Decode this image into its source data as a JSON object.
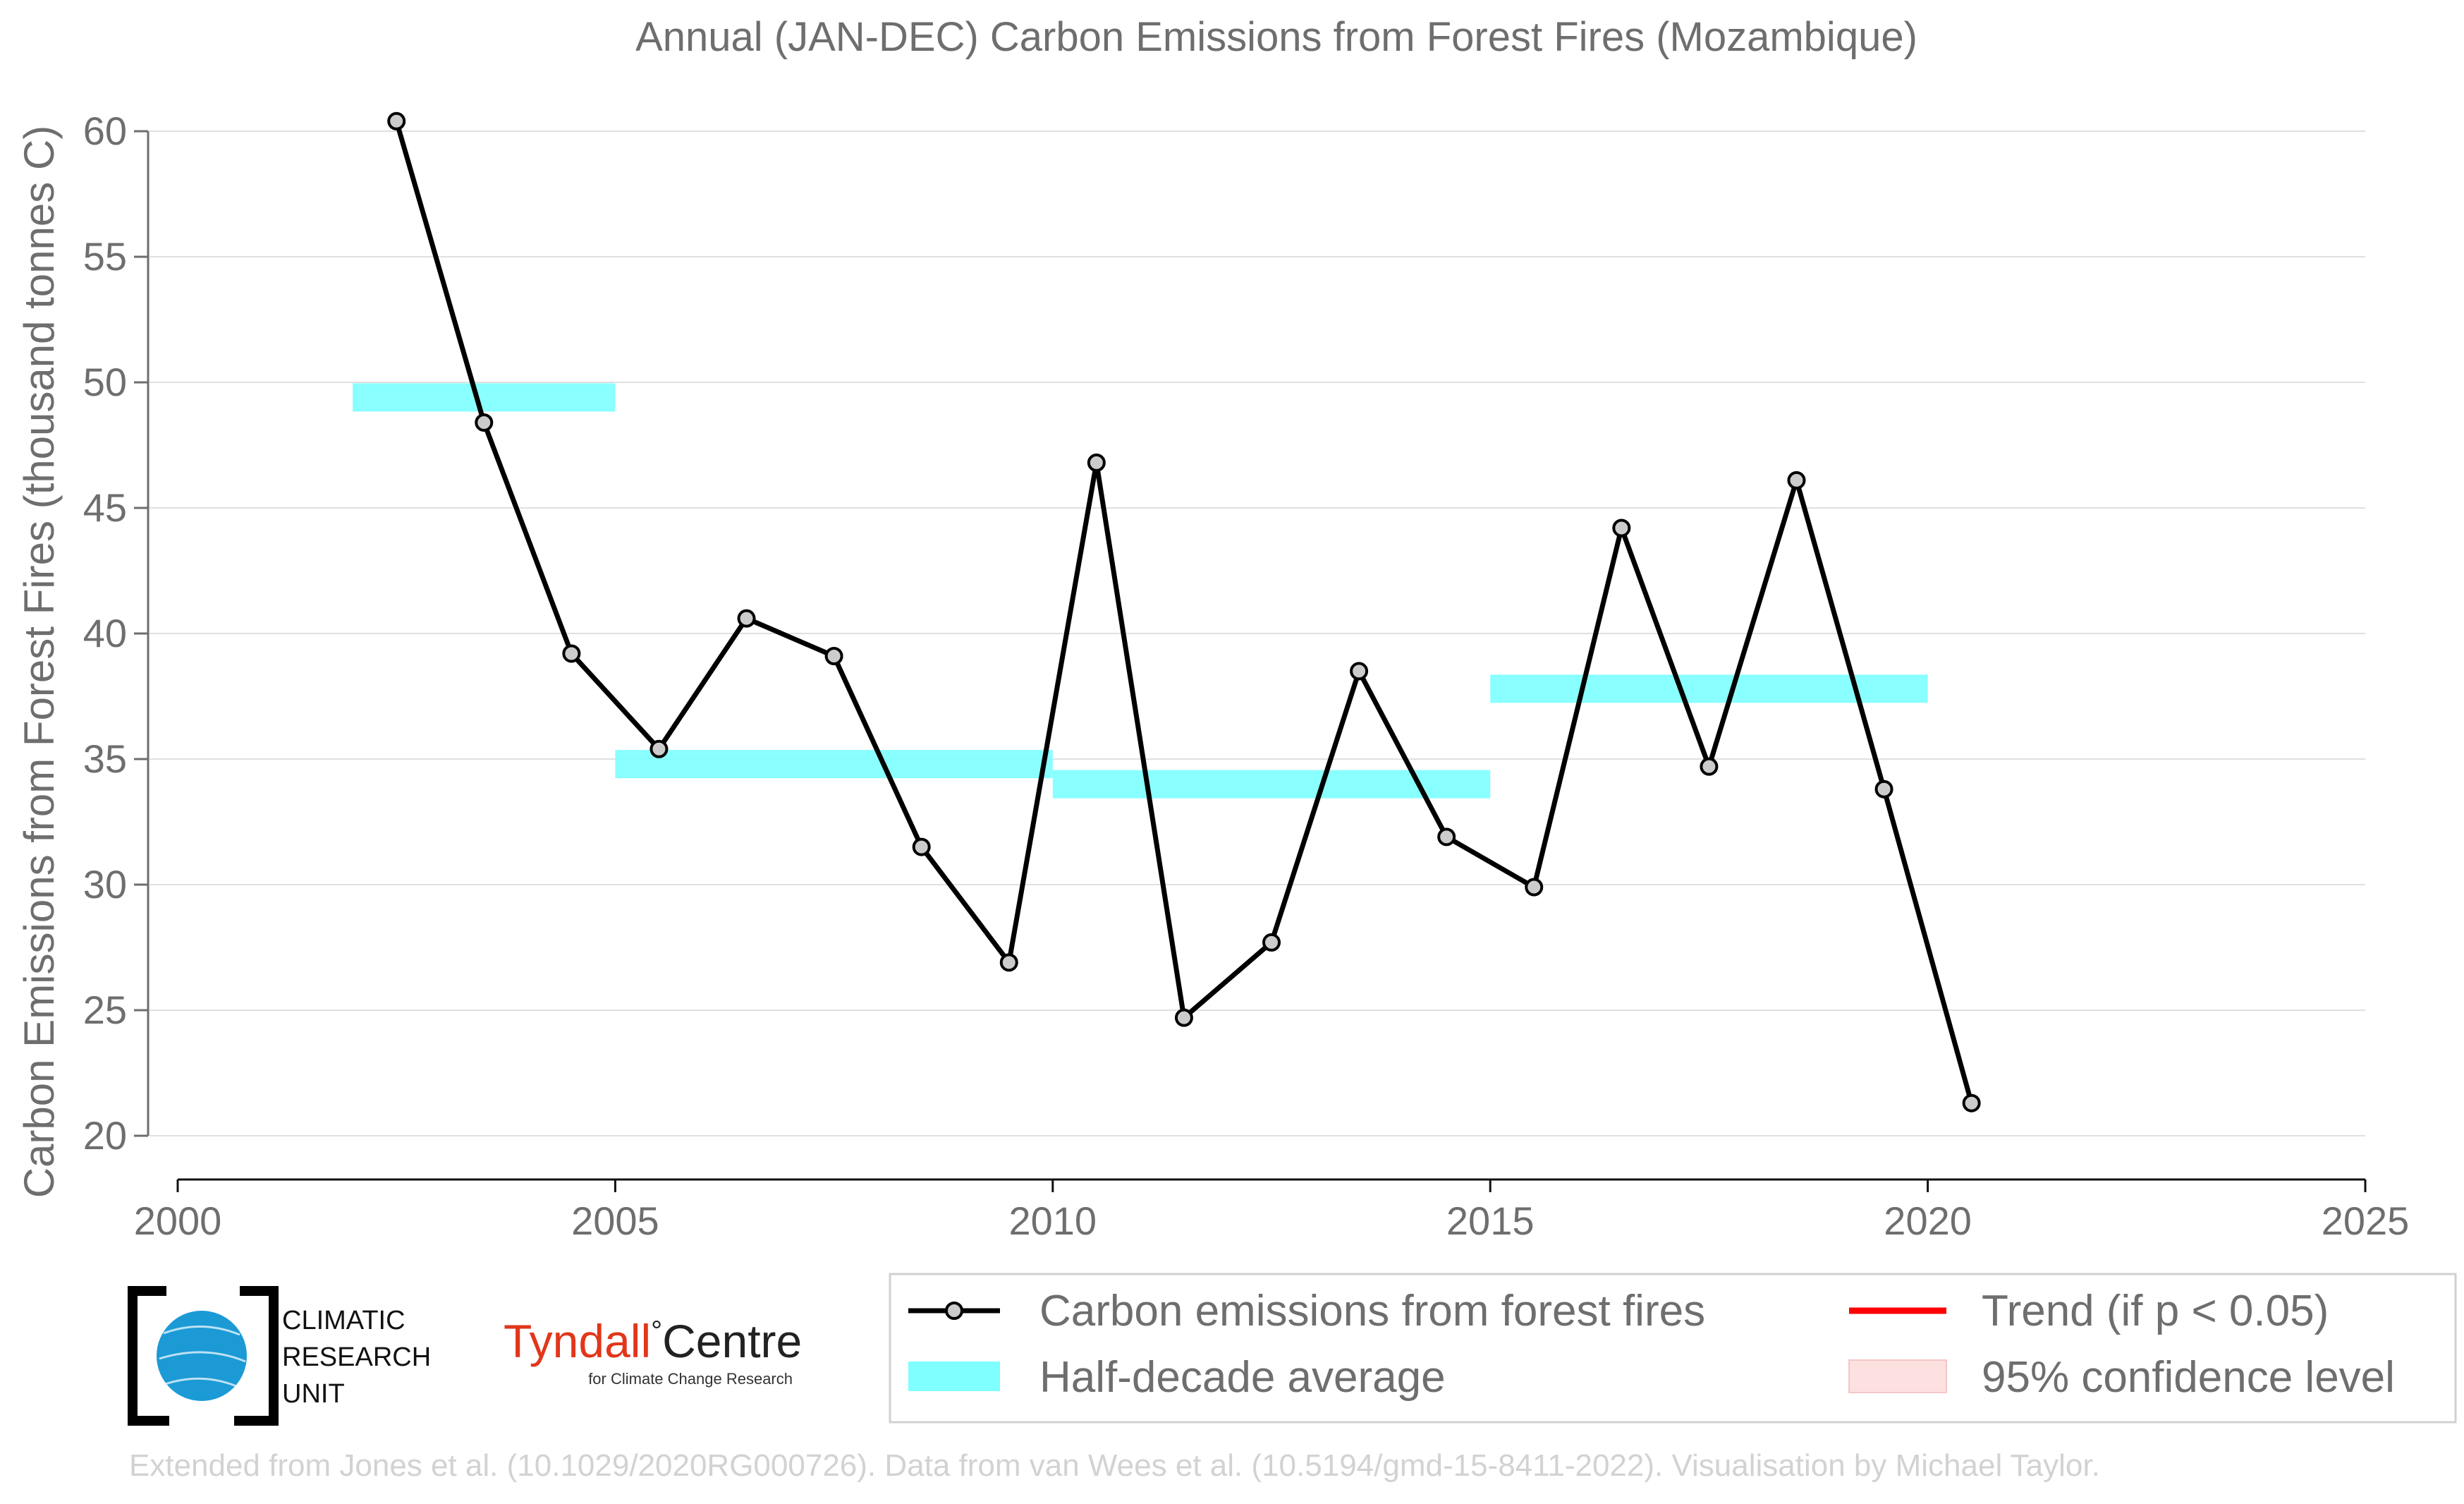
{
  "chart_data": {
    "type": "line",
    "title": "Annual (JAN-DEC) Carbon Emissions from Forest Fires (Mozambique)",
    "ylabel": "Carbon Emissions from Forest Fires (thousand tonnes C)",
    "xlabel": "",
    "xlim": [
      2000,
      2025
    ],
    "ylim": [
      20,
      60
    ],
    "x_ticks": [
      "2000",
      "2005",
      "2010",
      "2015",
      "2020",
      "2025"
    ],
    "y_ticks": [
      "20",
      "25",
      "30",
      "35",
      "40",
      "45",
      "50",
      "55",
      "60"
    ],
    "grid": "horizontal",
    "series": [
      {
        "name": "Carbon emissions from forest fires",
        "color": "#000000",
        "marker_fill": "#cccccc",
        "x": [
          2002.5,
          2003.5,
          2004.5,
          2005.5,
          2006.5,
          2007.5,
          2008.5,
          2009.5,
          2010.5,
          2011.5,
          2012.5,
          2013.5,
          2014.5,
          2015.5,
          2016.5,
          2017.5,
          2018.5,
          2019.5,
          2020.5
        ],
        "values": [
          60.4,
          48.4,
          39.2,
          35.4,
          40.6,
          39.1,
          31.5,
          26.9,
          46.8,
          24.7,
          27.7,
          38.5,
          31.9,
          29.9,
          44.2,
          34.7,
          46.1,
          33.8,
          21.3
        ]
      }
    ],
    "half_decade_average": {
      "name": "Half-decade average",
      "color": "#7fffff",
      "segments": [
        {
          "x0": 2002,
          "x1": 2005,
          "value": 49.4
        },
        {
          "x0": 2005,
          "x1": 2010,
          "value": 34.8
        },
        {
          "x0": 2010,
          "x1": 2015,
          "value": 34.0
        },
        {
          "x0": 2015,
          "x1": 2020,
          "value": 37.8
        }
      ]
    },
    "trend": {
      "name": "Trend (if p < 0.05)",
      "color": "#ff0000"
    },
    "confidence": {
      "name": "95% confidence level",
      "color": "#fde0e0"
    },
    "legend_position": "bottom-right"
  },
  "logos": {
    "cru_lines": [
      "CLIMATIC",
      "RESEARCH",
      "UNIT"
    ],
    "tyndall_word": "Tyndall",
    "tyndall_degree": "°",
    "tyndall_centre": "Centre",
    "tyndall_sub": "for Climate Change Research"
  },
  "credit": "Extended from Jones et al. (10.1029/2020RG000726). Data from van Wees et al. (10.5194/gmd-15-8411-2022). Visualisation by Michael Taylor.",
  "colors": {
    "text": "#6e6e6e",
    "grid": "#e0e0e0",
    "cru_blue": "#1b9ad6",
    "tyndall_red": "#e2361a"
  }
}
